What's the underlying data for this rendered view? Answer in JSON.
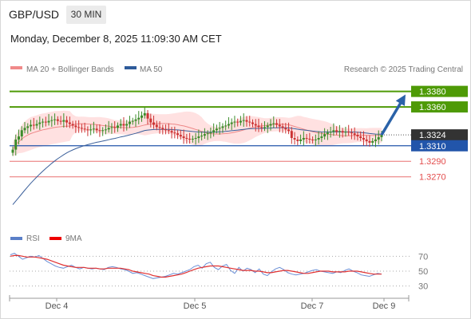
{
  "header": {
    "pair": "GBP/USD",
    "timeframe": "30 MIN",
    "datetime": "Monday, December 8, 2025 11:09:30 AM CET"
  },
  "legend": {
    "ma20": "MA 20 + Bollinger Bands",
    "ma50": "MA 50",
    "source": "Research © 2025 Trading Central",
    "rsi": "RSI",
    "rsi_ma": "9MA"
  },
  "colors": {
    "resistance": "#4e9a06",
    "support": "#2255aa",
    "target": "#e34d4d",
    "current": "#333333",
    "arrow": "#2a62a8",
    "bollinger": "#ffdada",
    "ma20": "#e88",
    "ma50": "#3a5f9a",
    "candle_up": "#3b8c2a",
    "candle_down": "#c33"
  },
  "chart_data": [
    {
      "type": "candlestick",
      "title": "GBP/USD",
      "ylim": [
        1.3205,
        1.3395
      ],
      "x_ticks": [
        "Dec 4",
        "Dec 5",
        "Dec 7",
        "Dec 9"
      ],
      "price_labels": [
        {
          "label": "1.3380",
          "kind": "resistance"
        },
        {
          "label": "1.3360",
          "kind": "resistance"
        },
        {
          "label": "1.3324",
          "kind": "current"
        },
        {
          "label": "1.3310",
          "kind": "support"
        },
        {
          "label": "1.3290",
          "kind": "target"
        },
        {
          "label": "1.3270",
          "kind": "target"
        }
      ],
      "levels": [
        1.338,
        1.336,
        1.3324,
        1.331,
        1.329,
        1.327
      ],
      "close_series": [
        1.3305,
        1.3318,
        1.3322,
        1.333,
        1.3333,
        1.3335,
        1.3337,
        1.3336,
        1.3338,
        1.334,
        1.3341,
        1.334,
        1.3342,
        1.3343,
        1.3344,
        1.3342,
        1.3341,
        1.3343,
        1.334,
        1.3338,
        1.3336,
        1.3334,
        1.3333,
        1.3332,
        1.3331,
        1.333,
        1.3331,
        1.3332,
        1.333,
        1.3329,
        1.333,
        1.3331,
        1.3333,
        1.3334,
        1.3333,
        1.3336,
        1.3338,
        1.3336,
        1.3338,
        1.3341,
        1.3342,
        1.3344,
        1.3346,
        1.3349,
        1.3352,
        1.3345,
        1.334,
        1.3337,
        1.3334,
        1.3333,
        1.3331,
        1.333,
        1.3329,
        1.3327,
        1.3326,
        1.3324,
        1.3322,
        1.332,
        1.3319,
        1.3318,
        1.3319,
        1.332,
        1.3322,
        1.3323,
        1.3325,
        1.3326,
        1.3327,
        1.333,
        1.3332,
        1.3333,
        1.3335,
        1.3336,
        1.3338,
        1.334,
        1.3341,
        1.334,
        1.3342,
        1.3343,
        1.3341,
        1.334,
        1.3338,
        1.3336,
        1.3334,
        1.3333,
        1.3334,
        1.3336,
        1.3338,
        1.3339,
        1.3337,
        1.3335,
        1.3333,
        1.3331,
        1.3329,
        1.332,
        1.3318,
        1.3316,
        1.3318,
        1.332,
        1.3319,
        1.3318,
        1.3317,
        1.3318,
        1.332,
        1.3322,
        1.3325,
        1.3327,
        1.3328,
        1.333,
        1.3328,
        1.3329,
        1.3327,
        1.3328,
        1.3327,
        1.3326,
        1.3324,
        1.3322,
        1.332,
        1.3318,
        1.3316,
        1.3314,
        1.3316,
        1.3318,
        1.3321,
        1.3324
      ],
      "ma50_start": 1.323,
      "forecast_arrow": {
        "from": 1.3324,
        "to": 1.3376
      }
    },
    {
      "type": "line",
      "title": "RSI",
      "ylim": [
        20,
        80
      ],
      "y_ticks": [
        70,
        50,
        30
      ],
      "series": [
        {
          "name": "RSI",
          "values": [
            72,
            74,
            70,
            66,
            68,
            70,
            69,
            71,
            67,
            63,
            60,
            57,
            55,
            54,
            56,
            58,
            55,
            53,
            55,
            54,
            53,
            54,
            53,
            52,
            55,
            56,
            55,
            53,
            52,
            50,
            47,
            48,
            46,
            44,
            42,
            40,
            41,
            42,
            43,
            45,
            47,
            46,
            48,
            50,
            52,
            56,
            58,
            54,
            60,
            62,
            55,
            52,
            57,
            59,
            51,
            47,
            55,
            50,
            54,
            52,
            48,
            53,
            46,
            44,
            49,
            53,
            55,
            52,
            48,
            46,
            45,
            46,
            47,
            49,
            51,
            52,
            50,
            49,
            48,
            47,
            49,
            48,
            51,
            53,
            50,
            48,
            45,
            44,
            43,
            45,
            47,
            46
          ]
        },
        {
          "name": "9MA",
          "values": [
            70,
            71,
            71,
            70,
            69,
            69,
            69,
            68,
            67,
            66,
            64,
            62,
            60,
            58,
            57,
            56,
            55,
            55,
            55,
            54,
            54,
            54,
            53,
            53,
            54,
            54,
            54,
            54,
            53,
            52,
            50,
            49,
            48,
            47,
            46,
            44,
            43,
            42,
            42,
            43,
            44,
            45,
            46,
            48,
            50,
            52,
            54,
            55,
            56,
            57,
            57,
            57,
            56,
            55,
            54,
            53,
            52,
            51,
            51,
            51,
            50,
            50,
            49,
            48,
            48,
            49,
            50,
            51,
            51,
            50,
            49,
            48,
            47,
            47,
            48,
            49,
            50,
            50,
            50,
            49,
            49,
            49,
            49,
            50,
            50,
            50,
            49,
            48,
            47,
            46,
            46,
            46
          ]
        }
      ]
    }
  ]
}
